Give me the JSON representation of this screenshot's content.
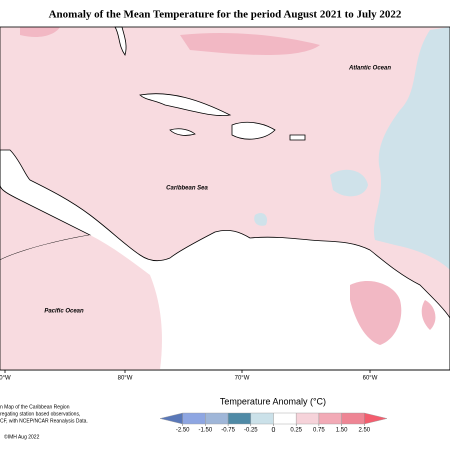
{
  "title": "Anomaly of the Mean Temperature for the period August 2021 to July 2022",
  "labels": {
    "atlantic": "Atlantic Ocean",
    "caribbean": "Caribbean Sea",
    "pacific": "Pacific Ocean"
  },
  "longitudes": [
    "0°W",
    "80°W",
    "70°W",
    "60°W"
  ],
  "notes": [
    "n Map of the Caribbean Region",
    "regating station based observations,",
    "CF, with NCEP/NCAR Reanalysis Data.",
    "©IMH Aug 2022"
  ],
  "legend": {
    "title": "Temperature Anomaly (°C)",
    "colors": [
      "#5a78b8",
      "#8ea6e2",
      "#9fb6d8",
      "#4f8aa6",
      "#cbe1e9",
      "#ffffff",
      "#f6d3da",
      "#f2aab6",
      "#ee8594",
      "#f35d6e"
    ],
    "ticks": [
      {
        "value": -2.5,
        "label": "-2.50"
      },
      {
        "value": -1.5,
        "label": "-1.50"
      },
      {
        "value": -0.75,
        "label": "-0.75"
      },
      {
        "value": -0.25,
        "label": "-0.25"
      },
      0,
      0.25,
      0.75,
      {
        "value": 1.5,
        "label": "1.50"
      },
      {
        "value": 2.5,
        "label": "2.50"
      }
    ]
  }
}
